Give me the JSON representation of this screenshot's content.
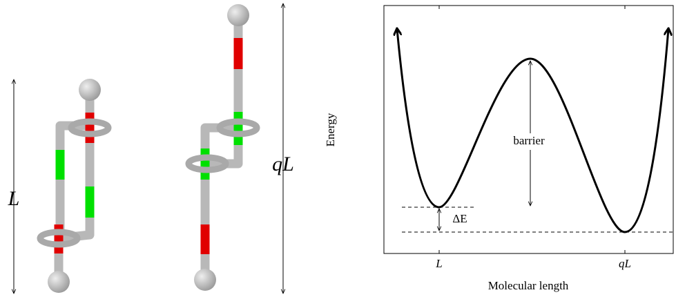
{
  "molecules": {
    "short_label": "L",
    "long_label": "qL"
  },
  "energy_plot": {
    "y_label": "Energy",
    "x_label": "Molecular length",
    "x_ticks": [
      "L",
      "qL"
    ],
    "barrier_label": "barrier",
    "delta_label": "ΔE"
  }
}
